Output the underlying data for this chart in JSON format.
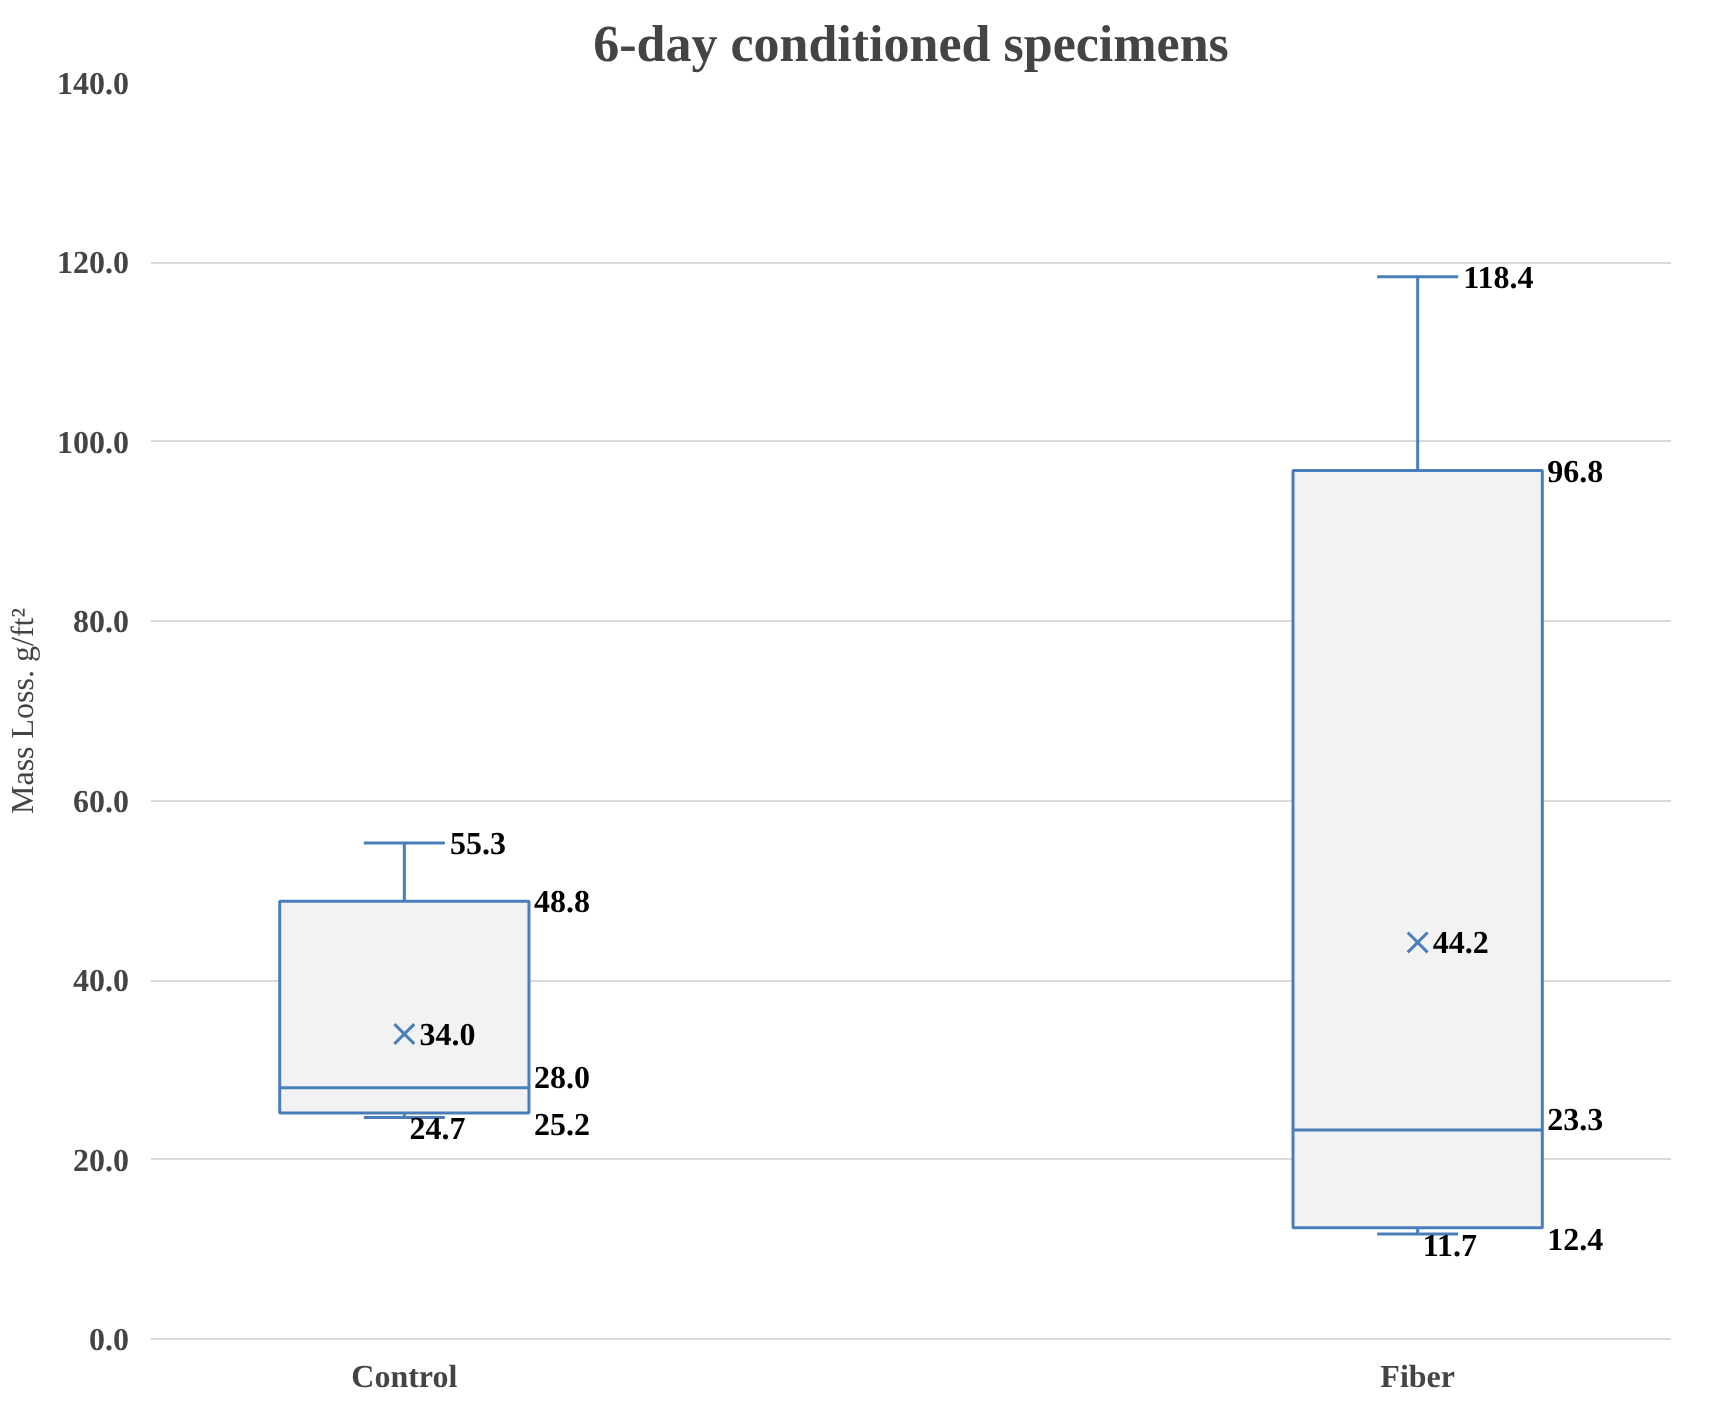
{
  "chart_data": {
    "type": "box",
    "title": "6-day conditioned specimens",
    "ylabel": "Mass Loss. g/ft²",
    "categories": [
      "Control",
      "Fiber"
    ],
    "series": [
      {
        "color": "#4a7ebb",
        "boxes": [
          {
            "low": 24.7,
            "q1": 25.2,
            "median": 28.0,
            "q3": 48.8,
            "high": 55.3,
            "mean": 34.0
          },
          {
            "low": 11.7,
            "q1": 12.4,
            "median": 23.3,
            "q3": 96.8,
            "high": 118.4,
            "mean": 44.2
          }
        ]
      }
    ],
    "annotations": [
      {
        "text": "55.3",
        "x": "Control",
        "y": 55.3
      },
      "48.8",
      "34.0",
      "28.0",
      "25.2",
      {
        "text": "24.7",
        "x": "Control",
        "y": 24.7
      },
      {
        "text": "118.4",
        "x": "Fiber",
        "y": 118.4
      },
      "96.8",
      "44.2",
      "23.3",
      "12.4",
      {
        "text": "11.7",
        "x": "Fiber",
        "y": 11.7
      }
    ],
    "ylim": [
      0,
      140
    ],
    "yticks": [
      {
        "value": 0,
        "label": "0.0"
      },
      {
        "value": 20,
        "label": "20.0"
      },
      {
        "value": 40,
        "label": "40.0"
      },
      {
        "value": 60,
        "label": "60.0"
      },
      {
        "value": 80,
        "label": "80.0"
      },
      {
        "value": 100,
        "label": "100.0"
      },
      {
        "value": 120,
        "label": "120.0"
      },
      {
        "value": 140,
        "label": "140.0"
      }
    ],
    "grid": "y"
  }
}
